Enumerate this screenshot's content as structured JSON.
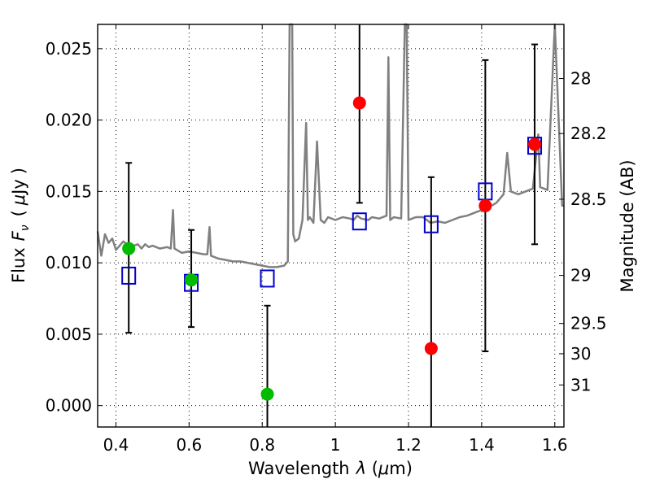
{
  "chart_data": {
    "type": "scatter",
    "xlabel_parts": [
      "Wavelength",
      "λ",
      " (",
      "μ",
      "m)"
    ],
    "ylabel_parts": [
      "Flux",
      "F",
      "ν",
      "(",
      "μ",
      "Jy",
      ")"
    ],
    "y2label": "Magnitude (AB)",
    "xlim": [
      0.35,
      1.625
    ],
    "ylim": [
      -0.0015,
      0.0267
    ],
    "x_ticks": [
      0.4,
      0.6,
      0.8,
      1.0,
      1.2,
      1.4,
      1.6
    ],
    "x_tick_labels": [
      "0.4",
      "0.6",
      "0.8",
      "1",
      "1.2",
      "1.4",
      "1.6"
    ],
    "y_ticks": [
      0.0,
      0.005,
      0.01,
      0.015,
      0.02,
      0.025
    ],
    "y_tick_labels": [
      "0.000",
      "0.005",
      "0.010",
      "0.015",
      "0.020",
      "0.025"
    ],
    "mag_ticks": [
      28,
      28.2,
      28.5,
      29,
      29.5,
      30,
      31
    ],
    "mag_tick_labels": [
      "28",
      "28.2",
      "28.5",
      "29",
      "29.5",
      "30",
      "31"
    ],
    "grid": true,
    "colors": {
      "green": "#00bb00",
      "red": "#ff0000",
      "model_square": "#0000cc",
      "sed_line": "#808080",
      "errorbar": "#000000"
    },
    "series": [
      {
        "name": "observed-green",
        "marker": "circle",
        "x": [
          0.435,
          0.606,
          0.814
        ],
        "y": [
          0.011,
          0.0088,
          0.0008
        ],
        "yerr_low": [
          0.0051,
          0.0055,
          -0.0015
        ],
        "yerr_high": [
          0.017,
          0.0123,
          0.007
        ]
      },
      {
        "name": "observed-red",
        "marker": "circle",
        "x": [
          1.066,
          1.262,
          1.41,
          1.545
        ],
        "y": [
          0.0212,
          0.004,
          0.014,
          0.0183
        ],
        "yerr_low": [
          0.0142,
          -0.0015,
          0.0038,
          0.0113
        ],
        "yerr_high": [
          0.0267,
          0.016,
          0.0242,
          0.0253
        ]
      },
      {
        "name": "model-photometry",
        "marker": "square",
        "x": [
          0.435,
          0.606,
          0.814,
          1.066,
          1.262,
          1.41,
          1.545
        ],
        "y": [
          0.0091,
          0.0086,
          0.0089,
          0.0129,
          0.0127,
          0.015,
          0.0182
        ]
      },
      {
        "name": "model-sed",
        "marker": "line",
        "x": [
          0.35,
          0.36,
          0.37,
          0.38,
          0.39,
          0.4,
          0.41,
          0.42,
          0.43,
          0.44,
          0.45,
          0.46,
          0.47,
          0.48,
          0.49,
          0.5,
          0.52,
          0.54,
          0.55,
          0.556,
          0.56,
          0.58,
          0.6,
          0.62,
          0.64,
          0.65,
          0.656,
          0.66,
          0.68,
          0.7,
          0.72,
          0.74,
          0.76,
          0.78,
          0.8,
          0.82,
          0.84,
          0.86,
          0.87,
          0.875,
          0.878,
          0.882,
          0.885,
          0.89,
          0.9,
          0.91,
          0.92,
          0.925,
          0.93,
          0.94,
          0.95,
          0.96,
          0.97,
          0.98,
          1.0,
          1.02,
          1.04,
          1.05,
          1.06,
          1.07,
          1.09,
          1.1,
          1.12,
          1.14,
          1.145,
          1.15,
          1.16,
          1.18,
          1.19,
          1.195,
          1.2,
          1.22,
          1.24,
          1.26,
          1.28,
          1.3,
          1.32,
          1.34,
          1.36,
          1.38,
          1.4,
          1.42,
          1.44,
          1.46,
          1.47,
          1.48,
          1.5,
          1.52,
          1.54,
          1.555,
          1.56,
          1.58,
          1.6,
          1.62,
          1.625
        ],
        "y": [
          0.0122,
          0.0105,
          0.012,
          0.0114,
          0.0117,
          0.0109,
          0.0112,
          0.0115,
          0.0113,
          0.0111,
          0.0112,
          0.0113,
          0.011,
          0.0113,
          0.0111,
          0.0112,
          0.011,
          0.0111,
          0.011,
          0.0137,
          0.011,
          0.0107,
          0.0108,
          0.0107,
          0.0106,
          0.0106,
          0.0125,
          0.0105,
          0.0103,
          0.0102,
          0.0101,
          0.0101,
          0.01,
          0.0099,
          0.0098,
          0.0097,
          0.0097,
          0.0098,
          0.0101,
          0.0267,
          0.0267,
          0.0267,
          0.012,
          0.0115,
          0.0117,
          0.013,
          0.0198,
          0.013,
          0.0132,
          0.0128,
          0.0185,
          0.013,
          0.0128,
          0.0132,
          0.013,
          0.0132,
          0.0131,
          0.013,
          0.0133,
          0.0131,
          0.013,
          0.0132,
          0.0131,
          0.0133,
          0.0244,
          0.013,
          0.0132,
          0.0131,
          0.0267,
          0.0267,
          0.013,
          0.0132,
          0.0132,
          0.0128,
          0.0129,
          0.0128,
          0.013,
          0.0132,
          0.0133,
          0.0135,
          0.0137,
          0.0139,
          0.0142,
          0.0148,
          0.0177,
          0.015,
          0.0148,
          0.015,
          0.0152,
          0.019,
          0.0153,
          0.0151,
          0.0267,
          0.014,
          0.014
        ]
      }
    ]
  }
}
